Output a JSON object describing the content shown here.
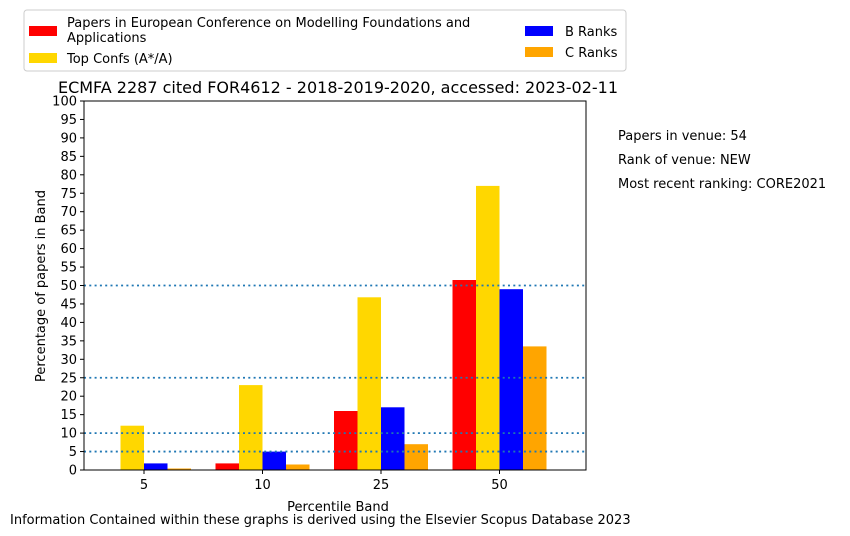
{
  "chart_data": {
    "type": "bar",
    "title": "ECMFA 2287 cited FOR4612 - 2018-2019-2020, accessed: 2023-02-11",
    "xlabel": "Percentile Band",
    "ylabel": "Percentage of papers in Band",
    "categories": [
      "5",
      "10",
      "25",
      "50"
    ],
    "ylim": [
      0,
      100
    ],
    "yticks": [
      0,
      5,
      10,
      15,
      20,
      25,
      30,
      35,
      40,
      45,
      50,
      55,
      60,
      65,
      70,
      75,
      80,
      85,
      90,
      95,
      100
    ],
    "reference_lines": [
      5,
      10,
      25,
      50
    ],
    "reference_line_color": "#1f77b4",
    "grid": false,
    "legend_position": "top-left, outside plot",
    "series": [
      {
        "name": "Papers in European Conference on Modelling Foundations and Applications",
        "color": "#ff0000",
        "values": [
          0,
          1.8,
          16,
          51.5
        ]
      },
      {
        "name": "Top Confs (A*/A)",
        "color": "#ffd700",
        "values": [
          12,
          23,
          46.8,
          77
        ]
      },
      {
        "name": "B Ranks",
        "color": "#0000ff",
        "values": [
          1.8,
          5,
          17,
          49
        ]
      },
      {
        "name": "C Ranks",
        "color": "#ffa500",
        "values": [
          0.4,
          1.5,
          7,
          33.5
        ]
      }
    ],
    "annotations": [
      "Papers in venue: 54",
      "Rank of venue: NEW",
      "Most recent ranking: CORE2021"
    ]
  },
  "footer": "Information Contained within these graphs is derived using the Elsevier Scopus Database 2023"
}
